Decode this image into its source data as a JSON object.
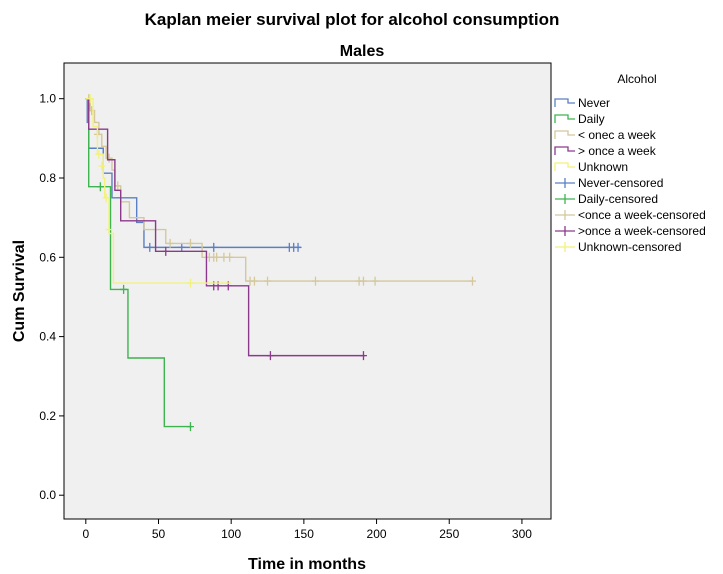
{
  "chart_data": {
    "type": "line",
    "step": true,
    "title": "Kaplan meier survival plot for alcohol consumption",
    "subtitle": "Males",
    "xlabel": "Time in months",
    "ylabel": "Cum Survival",
    "xlim": [
      -15,
      320
    ],
    "ylim": [
      -0.06,
      1.09
    ],
    "xticks": [
      0,
      50,
      100,
      150,
      200,
      250,
      300
    ],
    "yticks": [
      0.0,
      0.2,
      0.4,
      0.6,
      0.8,
      1.0
    ],
    "xtick_labels": [
      "0",
      "50",
      "100",
      "150",
      "200",
      "250",
      "300"
    ],
    "ytick_labels": [
      "0.0",
      "0.2",
      "0.4",
      "0.6",
      "0.8",
      "1.0"
    ],
    "grid": false,
    "plot_background": "#f0f0f0",
    "legend": {
      "title": "Alcohol",
      "position": "right",
      "entries": [
        {
          "label": "Never",
          "kind": "line",
          "color": "#5b7fc4"
        },
        {
          "label": "Daily",
          "kind": "line",
          "color": "#3fb34f"
        },
        {
          "label": "< onec a week",
          "kind": "line",
          "color": "#d4c89c"
        },
        {
          "label": "> once a week",
          "kind": "line",
          "color": "#8b3a8b"
        },
        {
          "label": "Unknown",
          "kind": "line",
          "color": "#f2f27a"
        },
        {
          "label": "Never-censored",
          "kind": "marker",
          "color": "#5b7fc4"
        },
        {
          "label": "Daily-censored",
          "kind": "marker",
          "color": "#3fb34f"
        },
        {
          "label": "<once a week-censored",
          "kind": "marker",
          "color": "#d4c89c"
        },
        {
          "label": ">once a week-censored",
          "kind": "marker",
          "color": "#8b3a8b"
        },
        {
          "label": "Unknown-censored",
          "kind": "marker",
          "color": "#f2f27a"
        }
      ]
    },
    "series": [
      {
        "name": "Never",
        "color": "#5b7fc4",
        "steps": [
          [
            0,
            1.0
          ],
          [
            1,
            0.94
          ],
          [
            2,
            0.875
          ],
          [
            12,
            0.812
          ],
          [
            18,
            0.75
          ],
          [
            35,
            0.688
          ],
          [
            40,
            0.625
          ],
          [
            148,
            0.625
          ]
        ],
        "censored": [
          [
            44,
            0.625
          ],
          [
            66,
            0.625
          ],
          [
            88,
            0.625
          ],
          [
            140,
            0.625
          ],
          [
            143,
            0.625
          ],
          [
            146,
            0.625
          ]
        ]
      },
      {
        "name": "Daily",
        "color": "#3fb34f",
        "steps": [
          [
            0,
            1.0
          ],
          [
            2,
            0.778
          ],
          [
            17,
            0.519
          ],
          [
            29,
            0.346
          ],
          [
            54,
            0.173
          ],
          [
            73,
            0.173
          ]
        ],
        "censored": [
          [
            10,
            0.778
          ],
          [
            26,
            0.519
          ],
          [
            72,
            0.173
          ]
        ]
      },
      {
        "name": "< onec a week",
        "color": "#d4c89c",
        "steps": [
          [
            0,
            1.0
          ],
          [
            3,
            0.97
          ],
          [
            6,
            0.94
          ],
          [
            9,
            0.91
          ],
          [
            11,
            0.88
          ],
          [
            14,
            0.85
          ],
          [
            18,
            0.82
          ],
          [
            20,
            0.78
          ],
          [
            24,
            0.74
          ],
          [
            30,
            0.7
          ],
          [
            40,
            0.67
          ],
          [
            55,
            0.635
          ],
          [
            80,
            0.6
          ],
          [
            110,
            0.54
          ],
          [
            266,
            0.54
          ]
        ],
        "censored": [
          [
            2,
            1.0
          ],
          [
            4,
            0.97
          ],
          [
            8,
            0.91
          ],
          [
            16,
            0.85
          ],
          [
            22,
            0.78
          ],
          [
            58,
            0.635
          ],
          [
            72,
            0.635
          ],
          [
            85,
            0.6
          ],
          [
            88,
            0.6
          ],
          [
            90,
            0.6
          ],
          [
            95,
            0.6
          ],
          [
            99,
            0.6
          ],
          [
            113,
            0.54
          ],
          [
            116,
            0.54
          ],
          [
            125,
            0.54
          ],
          [
            158,
            0.54
          ],
          [
            188,
            0.54
          ],
          [
            191,
            0.54
          ],
          [
            199,
            0.54
          ],
          [
            266,
            0.54
          ]
        ]
      },
      {
        "name": "> once a week",
        "color": "#8b3a8b",
        "steps": [
          [
            0,
            1.0
          ],
          [
            2,
            0.923
          ],
          [
            15,
            0.846
          ],
          [
            20,
            0.769
          ],
          [
            24,
            0.692
          ],
          [
            48,
            0.615
          ],
          [
            83,
            0.528
          ],
          [
            112,
            0.352
          ],
          [
            192,
            0.352
          ]
        ],
        "censored": [
          [
            55,
            0.615
          ],
          [
            88,
            0.528
          ],
          [
            91,
            0.528
          ],
          [
            98,
            0.528
          ],
          [
            127,
            0.352
          ],
          [
            191,
            0.352
          ]
        ]
      },
      {
        "name": "Unknown",
        "color": "#f2f27a",
        "steps": [
          [
            0,
            1.0
          ],
          [
            5,
            0.93
          ],
          [
            8,
            0.86
          ],
          [
            12,
            0.8
          ],
          [
            13,
            0.75
          ],
          [
            16,
            0.66
          ],
          [
            19,
            0.535
          ],
          [
            100,
            0.535
          ]
        ],
        "censored": [
          [
            3,
            1.0
          ],
          [
            9,
            0.86
          ],
          [
            11,
            0.83
          ],
          [
            14,
            0.75
          ],
          [
            16,
            0.67
          ],
          [
            72,
            0.535
          ]
        ]
      }
    ]
  }
}
